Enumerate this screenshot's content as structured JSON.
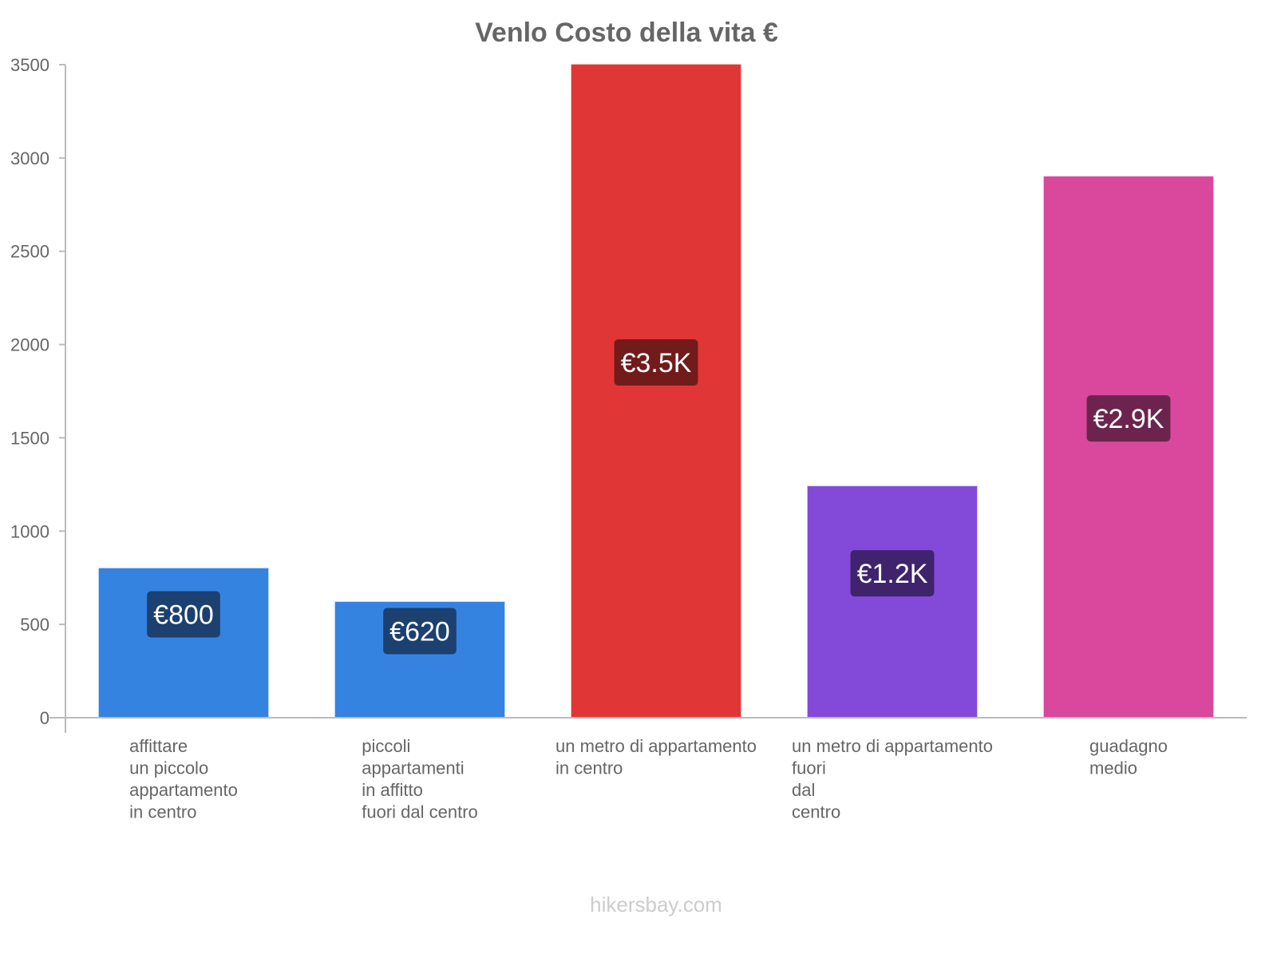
{
  "chart_data": {
    "type": "bar",
    "title": "Venlo Costo della vita €",
    "xlabel": "",
    "ylabel": "",
    "ylim": [
      0,
      3500
    ],
    "yticks": [
      0,
      500,
      1000,
      1500,
      2000,
      2500,
      3000,
      3500
    ],
    "grid": false,
    "categories": [
      [
        "affittare",
        "un piccolo",
        "appartamento",
        "in centro"
      ],
      [
        "piccoli",
        "appartamenti",
        "in affitto",
        "fuori dal centro"
      ],
      [
        "un metro di appartamento",
        "in centro"
      ],
      [
        "un metro di appartamento",
        "fuori",
        "dal",
        "centro"
      ],
      [
        "guadagno",
        "medio"
      ]
    ],
    "values": [
      800,
      620,
      3500,
      1240,
      2900
    ],
    "data_labels": [
      "€800",
      "€620",
      "€3.5K",
      "€1.2K",
      "€2.9K"
    ],
    "colors": [
      "#3583e0",
      "#3583e0",
      "#e13636",
      "#8349d8",
      "#d9489c"
    ],
    "label_bg": [
      "#1c406f",
      "#1c406f",
      "#711b1b",
      "#3f236c",
      "#6c244e"
    ]
  },
  "watermark": "hikersbay.com"
}
